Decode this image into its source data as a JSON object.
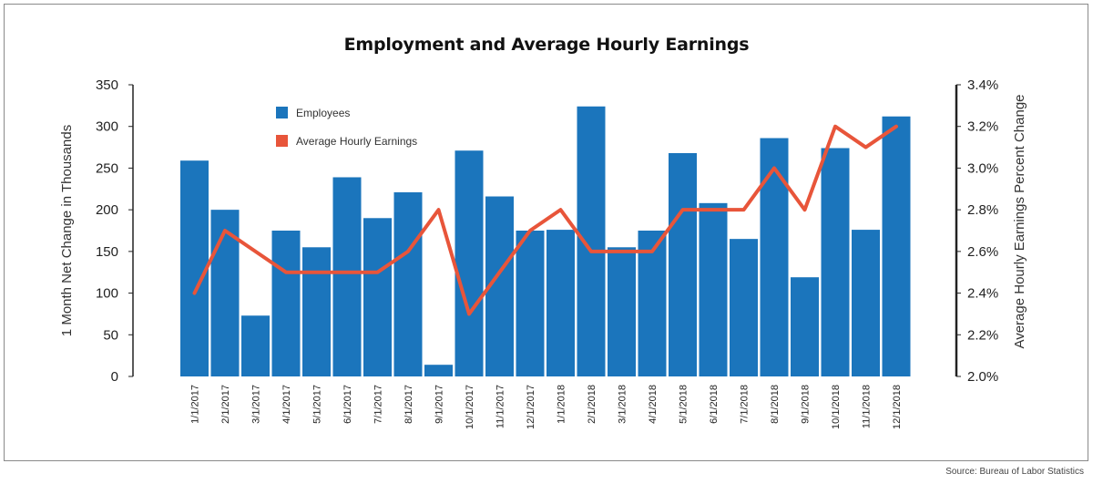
{
  "chart_data": {
    "type": "bar",
    "title": "Employment and Average Hourly Earnings",
    "source": "Source: Bureau of Labor Statistics",
    "ylabel": "1 Month Net Change in Thousands",
    "y2label": "Average Hourly Earnings Percent Change",
    "ylim": [
      0,
      350
    ],
    "y2lim": [
      2.0,
      3.4
    ],
    "yticks": [
      "0",
      "50",
      "100",
      "150",
      "200",
      "250",
      "300",
      "350"
    ],
    "y2ticks": [
      "2.0%",
      "2.2%",
      "2.4%",
      "2.6%",
      "2.8%",
      "3.0%",
      "3.2%",
      "3.4%"
    ],
    "grid": false,
    "legend_position": "top-left",
    "categories": [
      "1/1/2017",
      "2/1/2017",
      "3/1/2017",
      "4/1/2017",
      "5/1/2017",
      "6/1/2017",
      "7/1/2017",
      "8/1/2017",
      "9/1/2017",
      "10/1/2017",
      "11/1/2017",
      "12/1/2017",
      "1/1/2018",
      "2/1/2018",
      "3/1/2018",
      "4/1/2018",
      "5/1/2018",
      "6/1/2018",
      "7/1/2018",
      "8/1/2018",
      "9/1/2018",
      "10/1/2018",
      "11/1/2018",
      "12/1/2018"
    ],
    "series": [
      {
        "name": "Employees",
        "type": "bar",
        "axis": "left",
        "color": "#1b75bc",
        "values": [
          259,
          200,
          73,
          175,
          155,
          239,
          190,
          221,
          14,
          271,
          216,
          175,
          176,
          324,
          155,
          175,
          268,
          208,
          165,
          286,
          119,
          274,
          176,
          312
        ]
      },
      {
        "name": "Average Hourly Earnings",
        "type": "line",
        "axis": "right",
        "color": "#e8553a",
        "values": [
          2.4,
          2.7,
          2.6,
          2.5,
          2.5,
          2.5,
          2.5,
          2.6,
          2.8,
          2.3,
          2.5,
          2.7,
          2.8,
          2.6,
          2.6,
          2.6,
          2.8,
          2.8,
          2.8,
          3.0,
          2.8,
          3.2,
          3.1,
          3.2
        ]
      }
    ]
  }
}
